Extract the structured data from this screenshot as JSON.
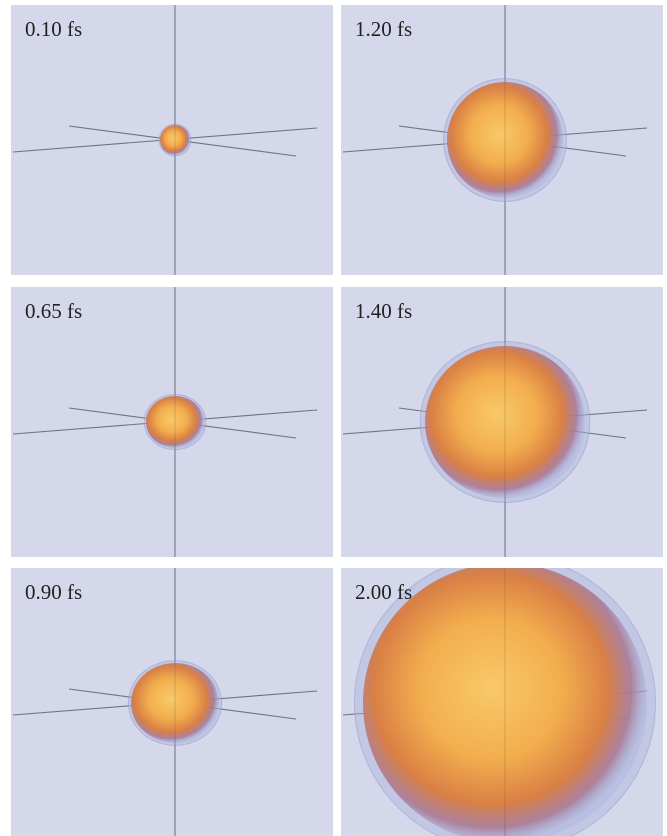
{
  "panels": [
    {
      "label": "0.10 fs"
    },
    {
      "label": "1.20 fs"
    },
    {
      "label": "0.65 fs"
    },
    {
      "label": "1.40 fs"
    },
    {
      "label": "0.90 fs"
    },
    {
      "label": "2.00 fs"
    }
  ]
}
